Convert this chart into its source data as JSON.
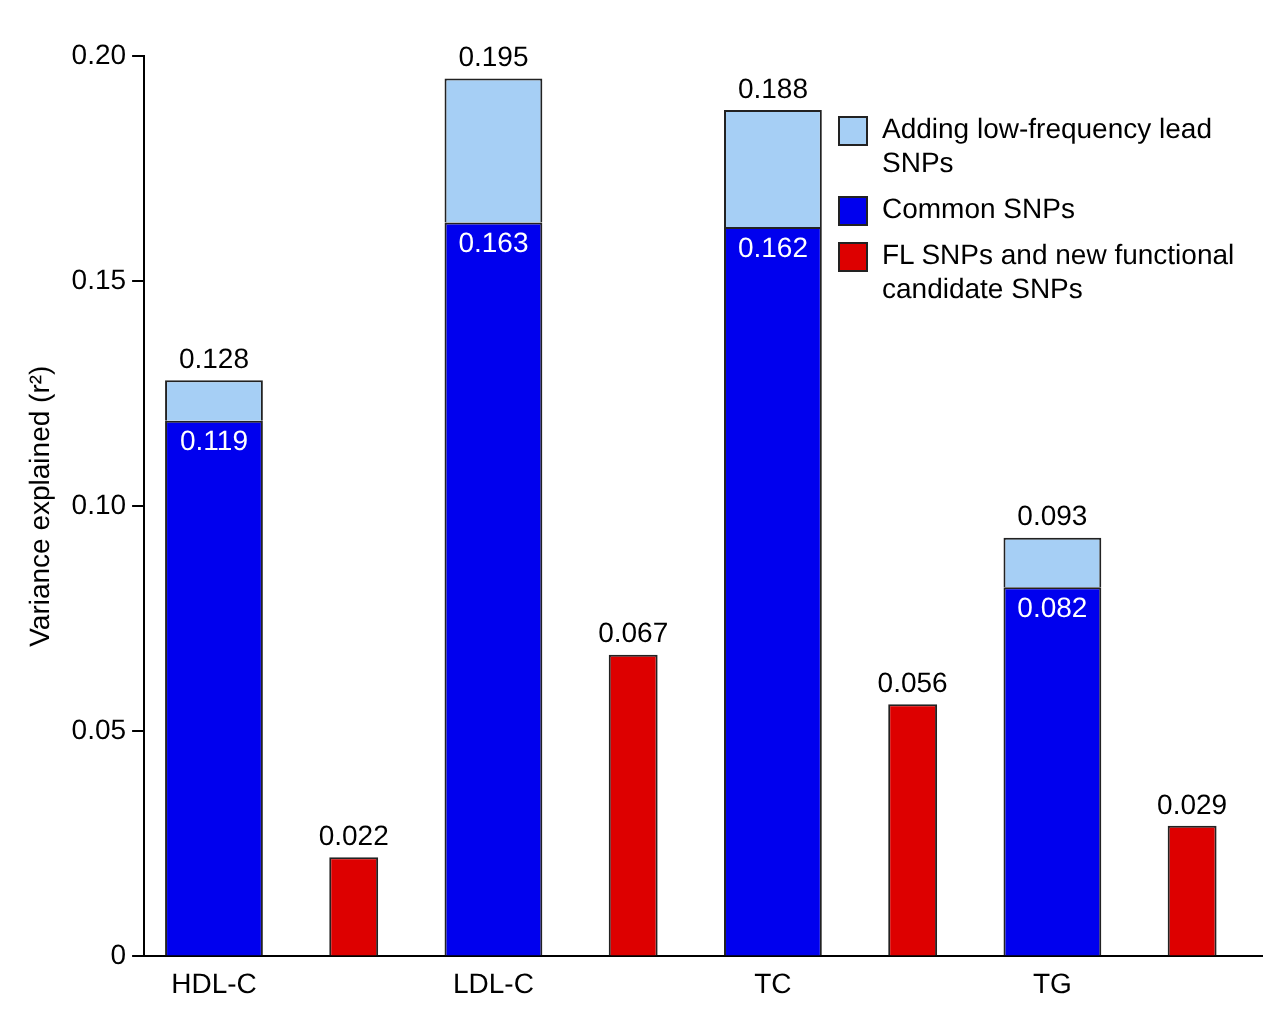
{
  "chart_data": {
    "type": "bar",
    "ylabel": "Variance explained (r²)",
    "categories": [
      "HDL-C",
      null,
      "LDL-C",
      null,
      "TC",
      null,
      "TG",
      null
    ],
    "stacked": true,
    "series": [
      {
        "name": "Common SNPs",
        "color": "#0000ee",
        "values": [
          0.119,
          null,
          0.163,
          null,
          0.162,
          null,
          0.082,
          null
        ],
        "value_labels": [
          "0.119",
          null,
          "0.163",
          null,
          "0.162",
          null,
          "0.082",
          null
        ]
      },
      {
        "name": "Adding low-frequency lead SNPs",
        "color": "#a6cff5",
        "values": [
          0.009,
          null,
          0.032,
          null,
          0.026,
          null,
          0.011,
          null
        ]
      },
      {
        "name": "FL SNPs and new functional candidate SNPs",
        "color": "#dd0000",
        "values": [
          null,
          0.022,
          null,
          0.067,
          null,
          0.056,
          null,
          0.029
        ],
        "value_labels": [
          null,
          "0.022",
          null,
          "0.067",
          null,
          "0.056",
          null,
          "0.029"
        ]
      }
    ],
    "totals": [
      "0.128",
      null,
      "0.195",
      null,
      "0.188",
      null,
      "0.093",
      null
    ],
    "ylim": [
      0,
      0.2
    ],
    "yticks": [
      0,
      0.05,
      {
        "value": 0.1,
        "label": "0.10"
      },
      0.15,
      {
        "value": 0.2,
        "label": "0.20"
      }
    ],
    "legend": "top right"
  }
}
